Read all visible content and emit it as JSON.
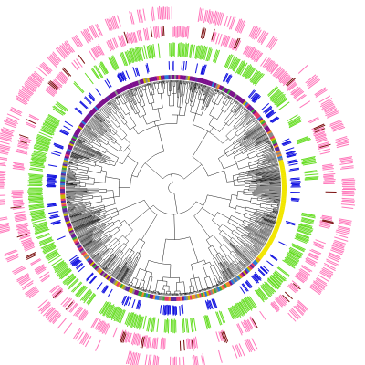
{
  "figure": {
    "type": "circular-phylogenetic-tree",
    "background": "#ffffff",
    "tree_color": "#000000",
    "inner_ring_colors": [
      "#7b0f8c",
      "#5a2aa0",
      "#e23a6a",
      "#f08a2a",
      "#2a7ad8",
      "#3aa83a",
      "#c8b800",
      "#888888"
    ],
    "yellow_segment_color": "#f2e600",
    "rings": [
      {
        "name": "blue-ring",
        "color": "#1010e0"
      },
      {
        "name": "green-ring",
        "color": "#66dd22"
      },
      {
        "name": "pink-ring-inner",
        "color": "#ff77bb"
      },
      {
        "name": "darkred-marks",
        "color": "#7a1010"
      },
      {
        "name": "pink-ring-outer",
        "color": "#ff77bb"
      }
    ]
  }
}
